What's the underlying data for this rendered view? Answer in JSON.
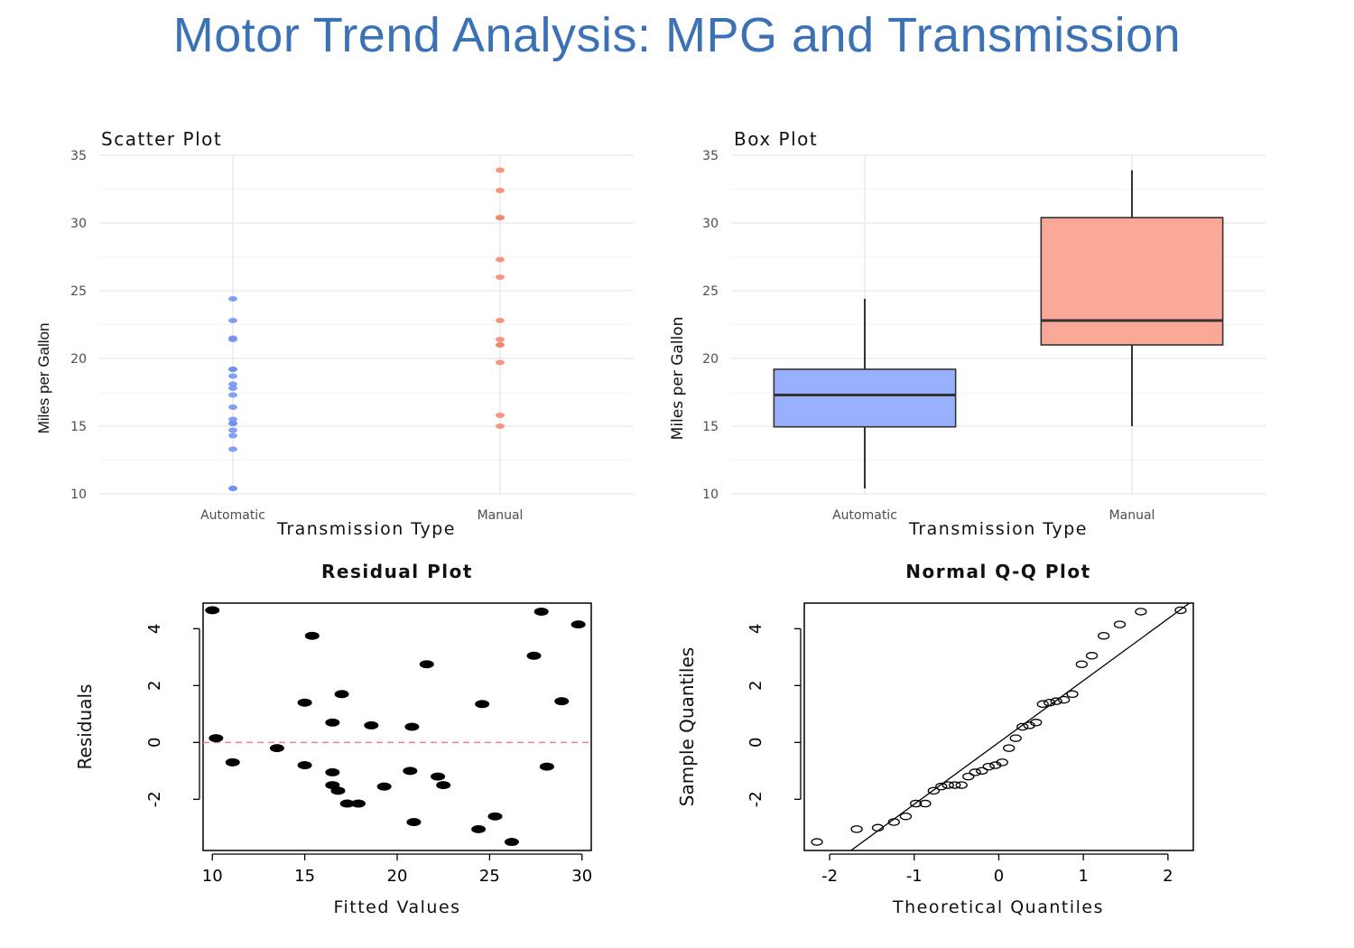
{
  "title": "Motor Trend Analysis: MPG and Transmission",
  "chart_data": [
    {
      "type": "scatter",
      "title": "Scatter Plot",
      "xlabel": "Transmission Type",
      "ylabel": "Miles per Gallon",
      "categories": [
        "Automatic",
        "Manual"
      ],
      "ylim": [
        10,
        35
      ],
      "yticks": [
        "10",
        "15",
        "20",
        "25",
        "30",
        "35"
      ],
      "grid": true,
      "colors": {
        "Automatic": "#6d8ef5",
        "Manual": "#f5846d"
      },
      "series": [
        {
          "category": "Automatic",
          "values": [
            21.4,
            18.7,
            18.1,
            14.3,
            24.4,
            22.8,
            19.2,
            17.8,
            16.4,
            17.3,
            15.2,
            10.4,
            10.4,
            14.7,
            21.5,
            15.5,
            15.2,
            13.3,
            19.2
          ]
        },
        {
          "category": "Manual",
          "values": [
            21.0,
            21.0,
            22.8,
            32.4,
            30.4,
            33.9,
            27.3,
            26.0,
            30.4,
            15.8,
            19.7,
            15.0,
            21.4
          ]
        }
      ]
    },
    {
      "type": "box",
      "title": "Box Plot",
      "xlabel": "Transmission Type",
      "ylabel": "Miles per Gallon",
      "categories": [
        "Automatic",
        "Manual"
      ],
      "ylim": [
        10,
        35
      ],
      "yticks": [
        "10",
        "15",
        "20",
        "25",
        "30",
        "35"
      ],
      "grid": true,
      "colors": {
        "Automatic": "#98b0fc",
        "Manual": "#fca898"
      },
      "boxes": [
        {
          "category": "Automatic",
          "min": 10.4,
          "q1": 14.95,
          "median": 17.3,
          "q3": 19.2,
          "max": 24.4
        },
        {
          "category": "Manual",
          "min": 15.0,
          "q1": 21.0,
          "median": 22.8,
          "q3": 30.4,
          "max": 33.9
        }
      ]
    },
    {
      "type": "scatter",
      "title": "Residual Plot",
      "xlabel": "Fitted Values",
      "ylabel": "Residuals",
      "xlim": [
        9.5,
        30.5
      ],
      "ylim": [
        -3.8,
        4.9
      ],
      "xticks": [
        "10",
        "15",
        "20",
        "25",
        "30"
      ],
      "yticks": [
        "-2",
        "0",
        "2",
        "4"
      ],
      "reference_line": {
        "y": 0,
        "color": "#f08080",
        "style": "dashed"
      },
      "points": [
        {
          "x": 10.0,
          "y": 4.65
        },
        {
          "x": 10.2,
          "y": 0.15
        },
        {
          "x": 11.1,
          "y": -0.7
        },
        {
          "x": 13.5,
          "y": -0.2
        },
        {
          "x": 15.0,
          "y": 1.4
        },
        {
          "x": 15.0,
          "y": -0.8
        },
        {
          "x": 15.4,
          "y": 3.75
        },
        {
          "x": 16.5,
          "y": 0.7
        },
        {
          "x": 16.5,
          "y": -1.05
        },
        {
          "x": 16.5,
          "y": -1.5
        },
        {
          "x": 16.8,
          "y": -1.7
        },
        {
          "x": 17.0,
          "y": 1.7
        },
        {
          "x": 17.3,
          "y": -2.15
        },
        {
          "x": 17.9,
          "y": -2.15
        },
        {
          "x": 18.6,
          "y": 0.6
        },
        {
          "x": 19.3,
          "y": -1.55
        },
        {
          "x": 20.7,
          "y": -1.0
        },
        {
          "x": 20.8,
          "y": 0.55
        },
        {
          "x": 20.9,
          "y": -2.8
        },
        {
          "x": 21.6,
          "y": 2.75
        },
        {
          "x": 22.2,
          "y": -1.2
        },
        {
          "x": 22.5,
          "y": -1.5
        },
        {
          "x": 24.4,
          "y": -3.05
        },
        {
          "x": 24.6,
          "y": 1.35
        },
        {
          "x": 25.3,
          "y": -2.6
        },
        {
          "x": 26.2,
          "y": -3.5
        },
        {
          "x": 27.4,
          "y": 3.05
        },
        {
          "x": 27.8,
          "y": 4.6
        },
        {
          "x": 28.1,
          "y": -0.85
        },
        {
          "x": 28.9,
          "y": 1.45
        },
        {
          "x": 29.8,
          "y": 4.15
        }
      ]
    },
    {
      "type": "scatter",
      "title": "Normal Q-Q Plot",
      "xlabel": "Theoretical Quantiles",
      "ylabel": "Sample Quantiles",
      "xlim": [
        -2.3,
        2.3
      ],
      "ylim": [
        -3.8,
        4.9
      ],
      "xticks": [
        "-2",
        "-1",
        "0",
        "1",
        "2"
      ],
      "yticks": [
        "-2",
        "0",
        "2",
        "4"
      ],
      "reference_line": {
        "x1": -2.3,
        "y1": -5.0,
        "x2": 2.3,
        "y2": 5.0
      },
      "points": [
        {
          "x": -2.15,
          "y": -3.5
        },
        {
          "x": -1.68,
          "y": -3.05
        },
        {
          "x": -1.43,
          "y": -3.0
        },
        {
          "x": -1.24,
          "y": -2.8
        },
        {
          "x": -1.1,
          "y": -2.6
        },
        {
          "x": -0.98,
          "y": -2.15
        },
        {
          "x": -0.87,
          "y": -2.15
        },
        {
          "x": -0.77,
          "y": -1.7
        },
        {
          "x": -0.68,
          "y": -1.55
        },
        {
          "x": -0.6,
          "y": -1.5
        },
        {
          "x": -0.52,
          "y": -1.5
        },
        {
          "x": -0.44,
          "y": -1.5
        },
        {
          "x": -0.36,
          "y": -1.2
        },
        {
          "x": -0.28,
          "y": -1.05
        },
        {
          "x": -0.2,
          "y": -1.0
        },
        {
          "x": -0.12,
          "y": -0.85
        },
        {
          "x": -0.04,
          "y": -0.8
        },
        {
          "x": 0.04,
          "y": -0.7
        },
        {
          "x": 0.12,
          "y": -0.2
        },
        {
          "x": 0.2,
          "y": 0.15
        },
        {
          "x": 0.28,
          "y": 0.55
        },
        {
          "x": 0.36,
          "y": 0.6
        },
        {
          "x": 0.44,
          "y": 0.7
        },
        {
          "x": 0.52,
          "y": 1.35
        },
        {
          "x": 0.6,
          "y": 1.4
        },
        {
          "x": 0.68,
          "y": 1.45
        },
        {
          "x": 0.77,
          "y": 1.5
        },
        {
          "x": 0.87,
          "y": 1.7
        },
        {
          "x": 0.98,
          "y": 2.75
        },
        {
          "x": 1.1,
          "y": 3.05
        },
        {
          "x": 1.24,
          "y": 3.75
        },
        {
          "x": 1.43,
          "y": 4.15
        },
        {
          "x": 1.68,
          "y": 4.6
        },
        {
          "x": 2.15,
          "y": 4.65
        }
      ]
    }
  ]
}
